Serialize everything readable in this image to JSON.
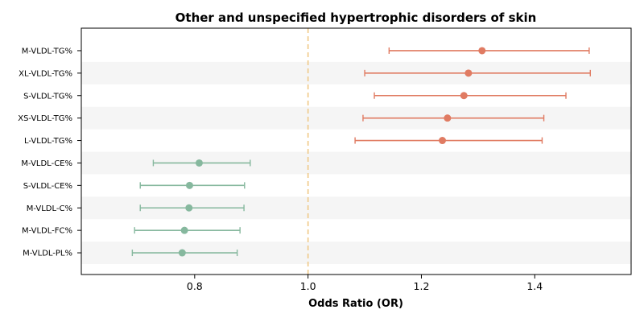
{
  "chart_data": {
    "type": "forest",
    "title": "Other and unspecified hypertrophic disorders of skin",
    "xlabel": "Odds Ratio (OR)",
    "xlim": [
      0.6,
      1.57
    ],
    "xticks": [
      0.8,
      1.0,
      1.2,
      1.4
    ],
    "xtick_labels": [
      "0.8",
      "1.0",
      "1.2",
      "1.4"
    ],
    "reference_line": 1.0,
    "grid": false,
    "alternating_row_shading": true,
    "colors": {
      "positive": "#e07b62",
      "negative": "#86b89e",
      "reference_line": "#f0c987",
      "shade": "#f5f5f5"
    },
    "rows": [
      {
        "label": "M-VLDL-TG%",
        "or": 1.307,
        "lower": 1.143,
        "upper": 1.496,
        "group": "positive"
      },
      {
        "label": "XL-VLDL-TG%",
        "or": 1.283,
        "lower": 1.1,
        "upper": 1.498,
        "group": "positive"
      },
      {
        "label": "S-VLDL-TG%",
        "or": 1.275,
        "lower": 1.117,
        "upper": 1.455,
        "group": "positive"
      },
      {
        "label": "XS-VLDL-TG%",
        "or": 1.246,
        "lower": 1.097,
        "upper": 1.416,
        "group": "positive"
      },
      {
        "label": "L-VLDL-TG%",
        "or": 1.237,
        "lower": 1.083,
        "upper": 1.413,
        "group": "positive"
      },
      {
        "label": "M-VLDL-CE%",
        "or": 0.808,
        "lower": 0.727,
        "upper": 0.898,
        "group": "negative"
      },
      {
        "label": "S-VLDL-CE%",
        "or": 0.791,
        "lower": 0.704,
        "upper": 0.888,
        "group": "negative"
      },
      {
        "label": "M-VLDL-C%",
        "or": 0.79,
        "lower": 0.704,
        "upper": 0.887,
        "group": "negative"
      },
      {
        "label": "M-VLDL-FC%",
        "or": 0.782,
        "lower": 0.694,
        "upper": 0.88,
        "group": "negative"
      },
      {
        "label": "M-VLDL-PL%",
        "or": 0.778,
        "lower": 0.69,
        "upper": 0.875,
        "group": "negative"
      }
    ]
  }
}
